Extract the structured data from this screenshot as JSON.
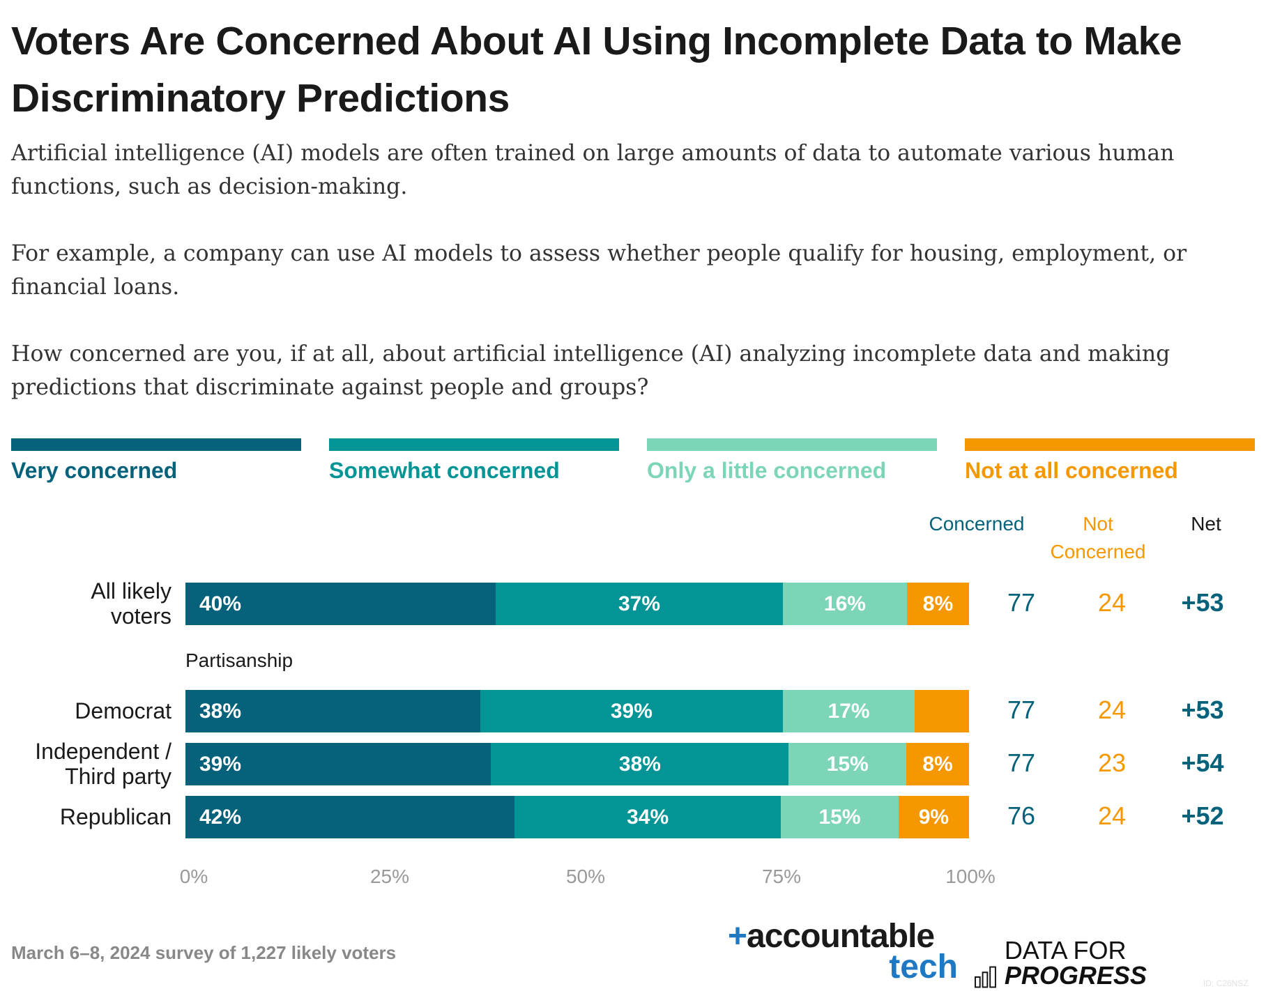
{
  "title": "Voters Are Concerned About AI Using Incomplete Data to Make Discriminatory Predictions",
  "body": [
    "Artificial intelligence (AI) models are often trained on large amounts of data to automate various human functions, such as decision-making.",
    "For example, a company can use AI models to assess whether people qualify for housing, employment, or financial loans.",
    "How concerned are you, if at all, about artificial intelligence (AI) analyzing incomplete data and making predictions that discriminate against people and groups?"
  ],
  "footer": "March 6–8, 2024 survey of 1,227 likely voters",
  "logos": {
    "accountable_tech": "+accountable tech",
    "data_for_progress": "DATA FOR PROGRESS",
    "id": "ID: C26NSZ"
  },
  "colors": {
    "very": "#05627a",
    "somewhat": "#039496",
    "little": "#7dd5b7",
    "not": "#f59800"
  },
  "chart_data": {
    "type": "bar",
    "orientation": "horizontal",
    "stacked": true,
    "xlim": [
      0,
      100
    ],
    "x_ticks": [
      "0%",
      "25%",
      "50%",
      "75%",
      "100%"
    ],
    "legend": [
      "Very concerned",
      "Somewhat concerned",
      "Only a little concerned",
      "Not at all concerned"
    ],
    "legend_placement": "top",
    "group_label": "Partisanship",
    "column_headers": {
      "concerned": "Concerned",
      "not_concerned": "Not Concerned",
      "net": "Net"
    },
    "rows": [
      {
        "label": "All likely voters",
        "values": [
          40,
          37,
          16,
          8
        ],
        "labels": [
          "40%",
          "37%",
          "16%",
          "8%"
        ],
        "concerned": "77",
        "not_concerned": "24",
        "net": "+53"
      },
      {
        "label": "Democrat",
        "values": [
          38,
          39,
          17,
          7
        ],
        "labels": [
          "38%",
          "39%",
          "17%",
          ""
        ],
        "concerned": "77",
        "not_concerned": "24",
        "net": "+53"
      },
      {
        "label": "Independent / Third party",
        "values": [
          39,
          38,
          15,
          8
        ],
        "labels": [
          "39%",
          "38%",
          "15%",
          "8%"
        ],
        "concerned": "77",
        "not_concerned": "23",
        "net": "+54"
      },
      {
        "label": "Republican",
        "values": [
          42,
          34,
          15,
          9
        ],
        "labels": [
          "42%",
          "34%",
          "15%",
          "9%"
        ],
        "concerned": "76",
        "not_concerned": "24",
        "net": "+52"
      }
    ]
  }
}
